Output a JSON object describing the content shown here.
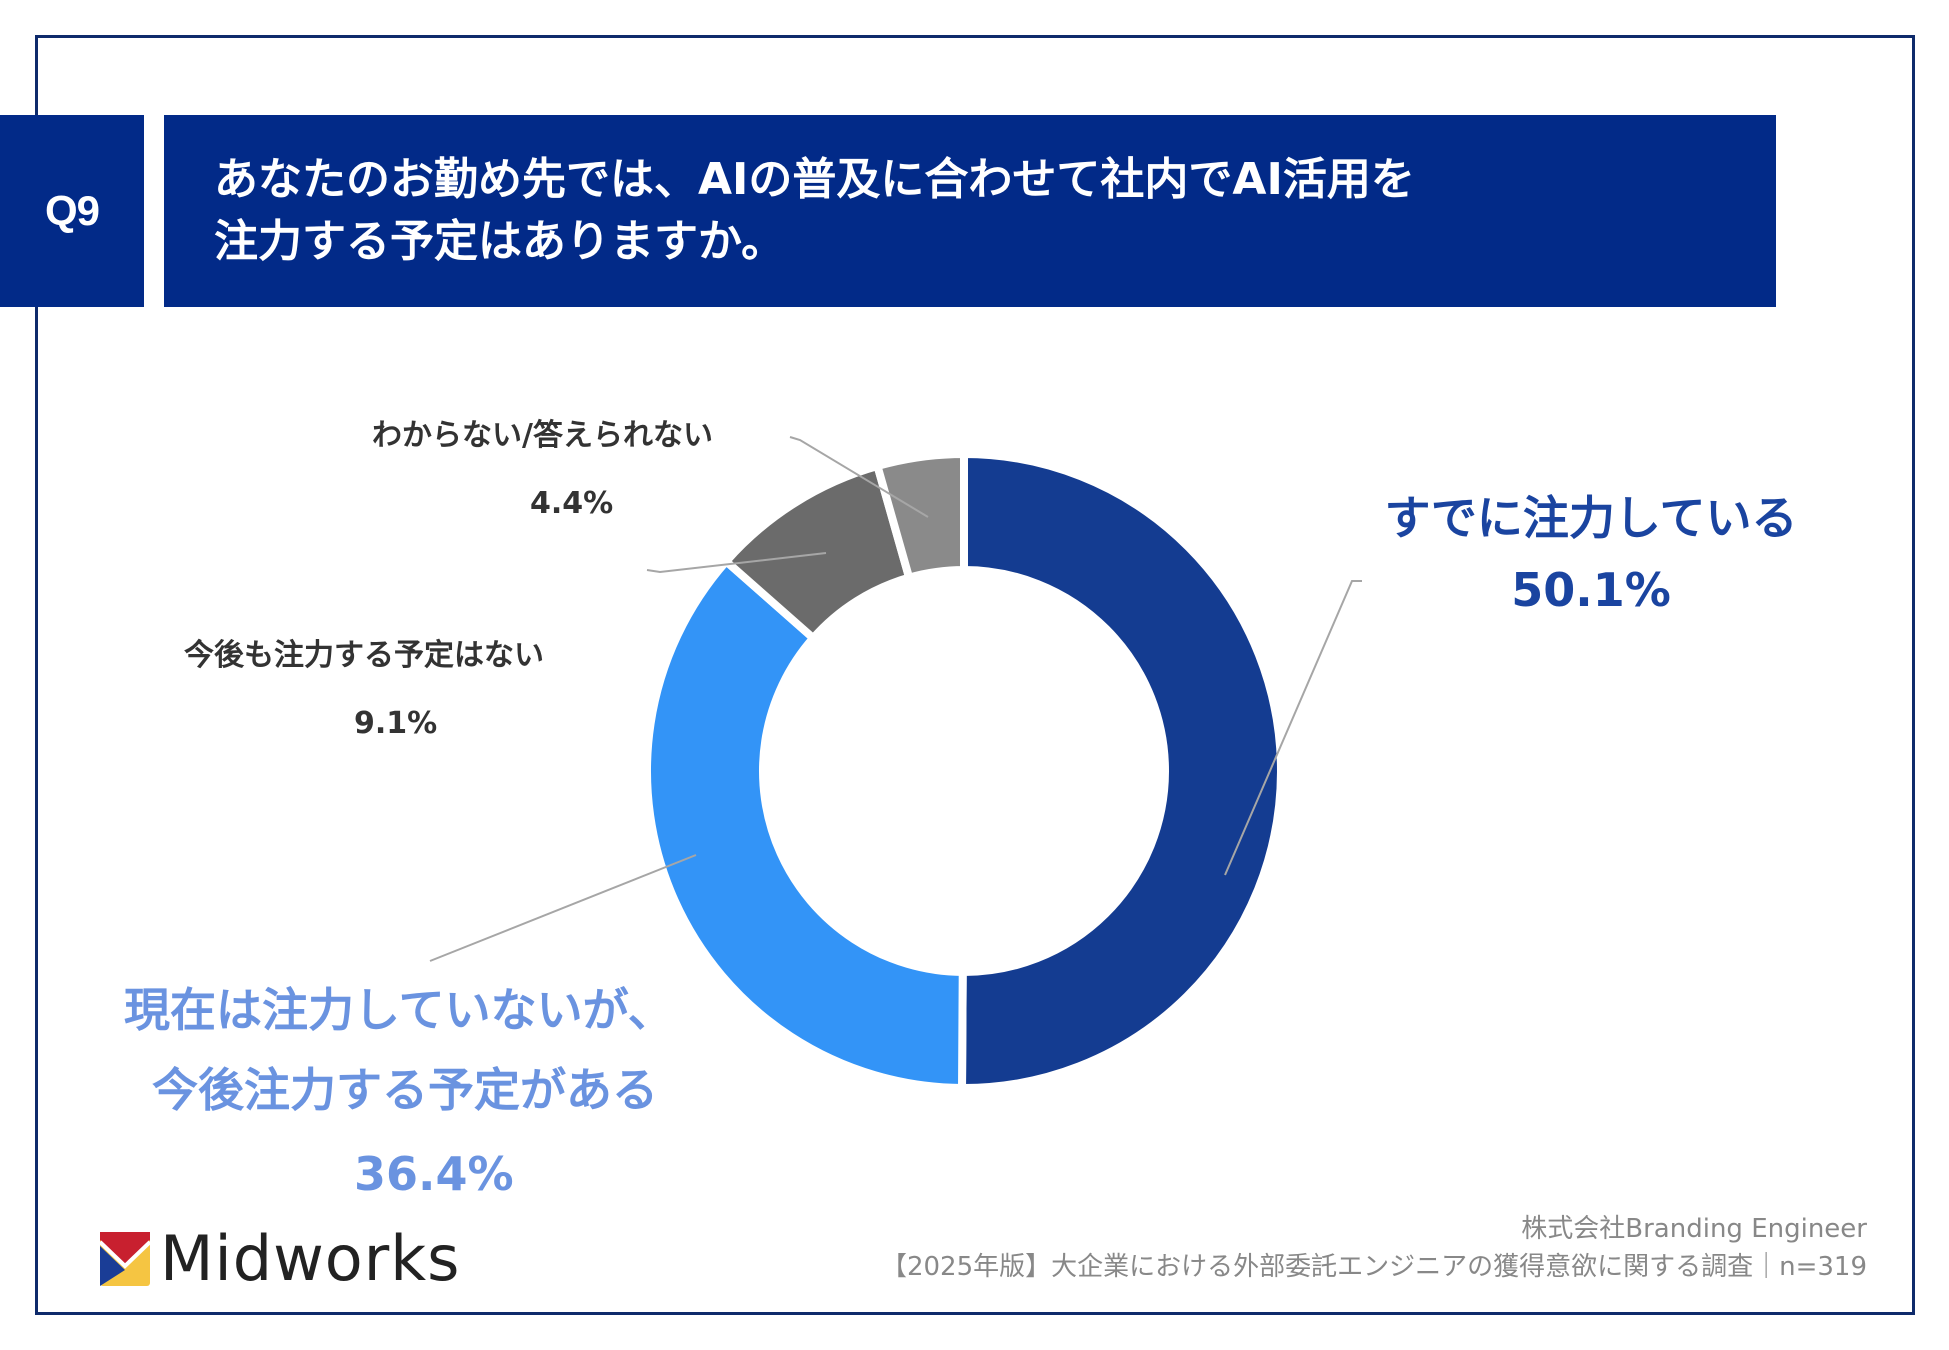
{
  "question": {
    "number": "Q9",
    "title_line1": "あなたのお勤め先では、AIの普及に合わせて社内でAI活用を",
    "title_line2": "注力する予定はありますか。"
  },
  "colors": {
    "frame": "#0e2a6b",
    "header_bg": "#022a88",
    "segment_already": "#143c91",
    "segment_planned": "#3394f7",
    "segment_no_plan": "#6b6b6b",
    "segment_unknown": "#8a8a8a",
    "label_navy": "#1a44a0",
    "label_light_blue": "#6a93e0"
  },
  "labels": {
    "already": {
      "text": "すでに注力している",
      "value": "50.1%"
    },
    "planned": {
      "text_line1": "現在は注力していないが、",
      "text_line2": "今後注力する予定がある",
      "value": "36.4%"
    },
    "no_plan": {
      "text": "今後も注力する予定はない",
      "value": "9.1%"
    },
    "unknown": {
      "text": "わからない/答えられない",
      "value": "4.4%"
    }
  },
  "chart_data": {
    "type": "pie",
    "subtype": "donut",
    "title": "あなたのお勤め先では、AIの普及に合わせて社内でAI活用を注力する予定はありますか。",
    "categories": [
      "すでに注力している",
      "現在は注力していないが、今後注力する予定がある",
      "今後も注力する予定はない",
      "わからない/答えられない"
    ],
    "values": [
      50.1,
      36.4,
      9.1,
      4.4
    ],
    "unit": "%",
    "colors": [
      "#143c91",
      "#3394f7",
      "#6b6b6b",
      "#8a8a8a"
    ],
    "start_angle": "12 o'clock, clockwise",
    "legend": "none (direct labels with leader lines)",
    "n": 319
  },
  "footer": {
    "company": "株式会社Branding Engineer",
    "survey": "【2025年版】大企業における外部委託エンジニアの獲得意欲に関する調査｜n=319"
  },
  "logo": {
    "text": "Midworks"
  }
}
